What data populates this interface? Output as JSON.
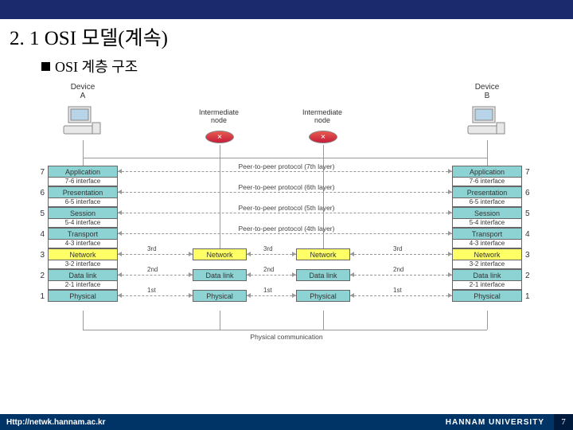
{
  "header": {
    "title": "2. 1 OSI 모델(계속)",
    "subtitle": "OSI 계층 구조"
  },
  "devices": {
    "a": "Device\nA",
    "b": "Device\nB",
    "inter": "Intermediate\nnode"
  },
  "layers7": [
    {
      "n": 7,
      "name": "Application",
      "iface": "7-6 interface",
      "color": "#8dd3d4"
    },
    {
      "n": 6,
      "name": "Presentation",
      "iface": "6-5 interface",
      "color": "#8dd3d4"
    },
    {
      "n": 5,
      "name": "Session",
      "iface": "5-4 interface",
      "color": "#8dd3d4"
    },
    {
      "n": 4,
      "name": "Transport",
      "iface": "4-3 interface",
      "color": "#8dd3d4"
    },
    {
      "n": 3,
      "name": "Network",
      "iface": "3-2 interface",
      "color": "#ffff66"
    },
    {
      "n": 2,
      "name": "Data link",
      "iface": "2-1 interface",
      "color": "#8dd3d4"
    },
    {
      "n": 1,
      "name": "Physical",
      "iface": "",
      "color": "#8dd3d4"
    }
  ],
  "layers3": [
    {
      "name": "Network",
      "color": "#ffff66"
    },
    {
      "name": "Data link",
      "color": "#8dd3d4"
    },
    {
      "name": "Physical",
      "color": "#8dd3d4"
    }
  ],
  "protocols": [
    {
      "text": "Peer-to-peer protocol (7th layer)",
      "y": 0
    },
    {
      "text": "Peer-to-peer protocol (6th layer)",
      "y": 1
    },
    {
      "text": "Peer-to-peer protocol (5th layer)",
      "y": 2
    },
    {
      "text": "Peer-to-peer protocol (4th layer)",
      "y": 3
    }
  ],
  "hops": [
    "3rd",
    "2nd",
    "1st"
  ],
  "physical": "Physical communication",
  "footer": {
    "url": "Http://netwk.hannam.ac.kr",
    "uni": "HANNAM UNIVERSITY",
    "page": "7"
  },
  "colors": {
    "teal": "#8dd3d4",
    "yellow": "#ffff66",
    "header": "#1a2a6c",
    "footer": "#003366"
  }
}
